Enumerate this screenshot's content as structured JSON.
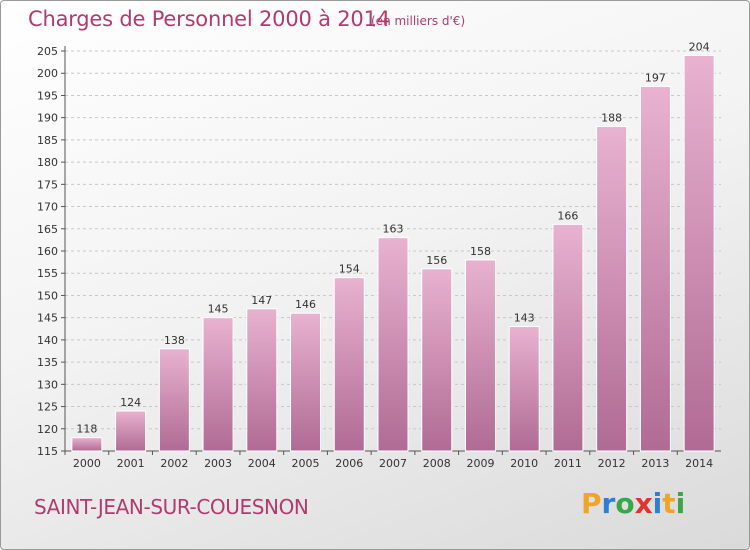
{
  "header": {
    "title": "Charges de Personnel 2000 à 2014",
    "subtitle": "(en milliers d'€)"
  },
  "footer": {
    "commune": "SAINT-JEAN-SUR-COUESNON",
    "logo_text": "Proxiti"
  },
  "colors": {
    "accent": "#b13a70",
    "bar_light": "#e8b2d0",
    "bar_dark": "#b06b94",
    "logo_letters": [
      "#f0a52a",
      "#2e7fd0",
      "#3aa648",
      "#e2322c",
      "#2e7fd0",
      "#f0a52a",
      "#3aa648"
    ]
  },
  "chart_data": {
    "type": "bar",
    "categories": [
      "2000",
      "2001",
      "2002",
      "2003",
      "2004",
      "2005",
      "2006",
      "2007",
      "2008",
      "2009",
      "2010",
      "2011",
      "2012",
      "2013",
      "2014"
    ],
    "values": [
      118,
      124,
      138,
      145,
      147,
      146,
      154,
      163,
      156,
      158,
      143,
      166,
      188,
      197,
      204
    ],
    "title": "Charges de Personnel 2000 à 2014",
    "subtitle": "(en milliers d'€)",
    "xlabel": "",
    "ylabel": "",
    "ylim": [
      115,
      205
    ],
    "yticks": [
      115,
      120,
      125,
      130,
      135,
      140,
      145,
      150,
      155,
      160,
      165,
      170,
      175,
      180,
      185,
      190,
      195,
      200,
      205
    ],
    "grid": true
  }
}
